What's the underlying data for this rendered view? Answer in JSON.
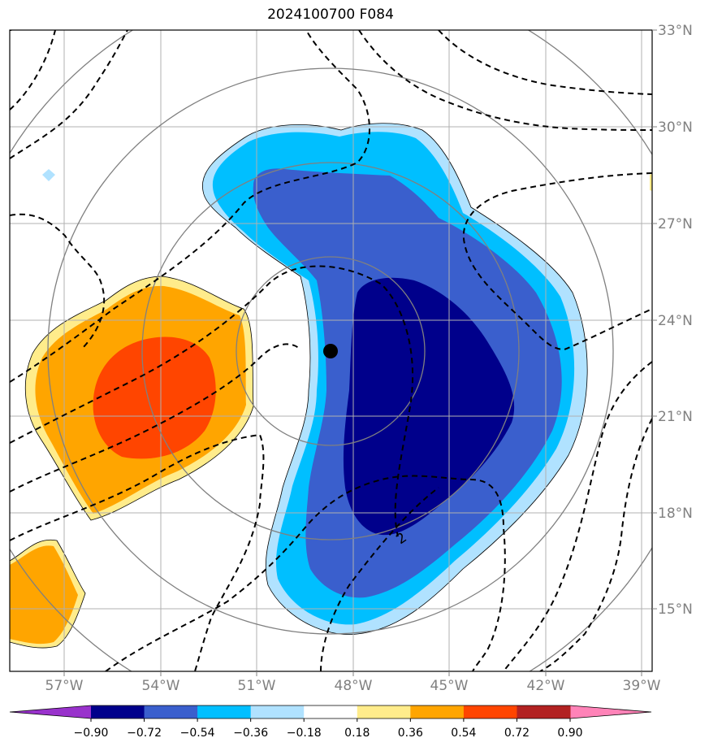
{
  "title": "2024100700 F084",
  "map": {
    "lon_labels": [
      "57°W",
      "54°W",
      "51°W",
      "48°W",
      "45°W",
      "42°W",
      "39°W"
    ],
    "lat_labels": [
      "33°N",
      "30°N",
      "27°N",
      "24°N",
      "21°N",
      "18°N",
      "15°N"
    ],
    "contour_label": "2",
    "center_marker": "storm-center-dot",
    "range_rings": 4,
    "grid": true
  },
  "colorbar": {
    "ticks": [
      "−0.90",
      "−0.72",
      "−0.54",
      "−0.36",
      "−0.18",
      "0.18",
      "0.36",
      "0.54",
      "0.72",
      "0.90"
    ],
    "colors": [
      "#9932cc",
      "#00008b",
      "#3a5fcd",
      "#00bfff",
      "#b0e2ff",
      "#ffffff",
      "#ffec8b",
      "#ffa500",
      "#ff4500",
      "#b22222",
      "#ff83b8"
    ],
    "extend": "both"
  }
}
